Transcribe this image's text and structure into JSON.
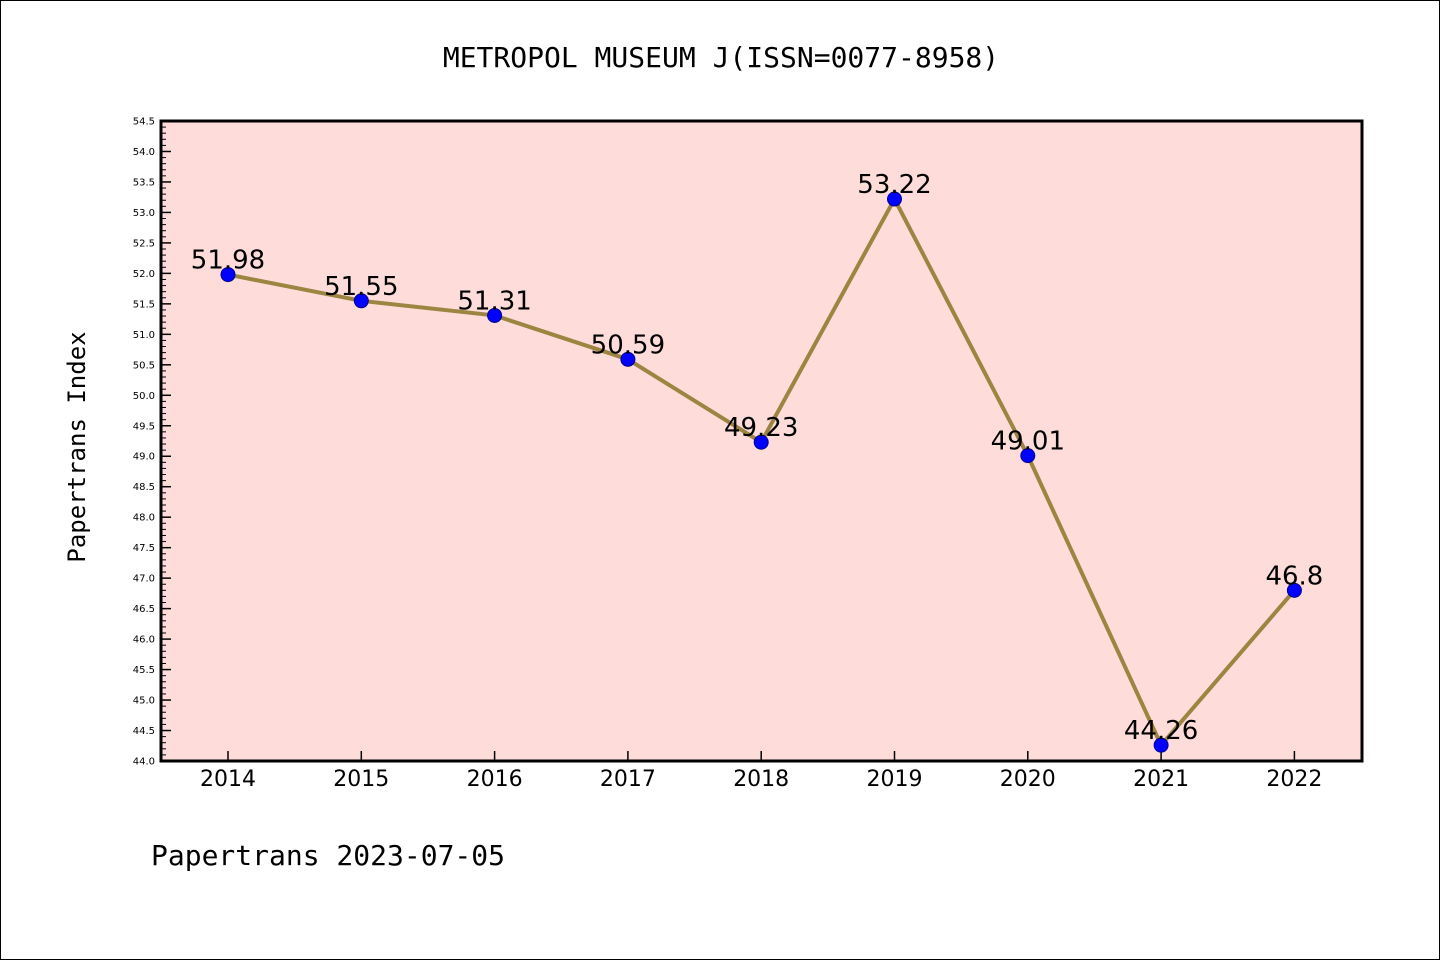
{
  "chart_data": {
    "type": "line",
    "title": "METROPOL MUSEUM J(ISSN=0077-8958)",
    "xlabel": "",
    "ylabel": "Papertrans Index",
    "categories": [
      "2014",
      "2015",
      "2016",
      "2017",
      "2018",
      "2019",
      "2020",
      "2021",
      "2022"
    ],
    "series": [
      {
        "values": [
          51.98,
          51.55,
          51.31,
          50.59,
          49.23,
          53.22,
          49.01,
          44.26,
          46.8
        ],
        "labels": [
          "51.98",
          "51.55",
          "51.31",
          "50.59",
          "49.23",
          "53.22",
          "49.01",
          "44.26",
          "46.8"
        ]
      }
    ],
    "ylim": [
      44.0,
      54.5
    ],
    "ytick_step": 0.5,
    "yticks": [
      "44.0",
      "44.5",
      "45.0",
      "45.5",
      "46.0",
      "46.5",
      "47.0",
      "47.5",
      "48.0",
      "48.5",
      "49.0",
      "49.5",
      "50.0",
      "50.5",
      "51.0",
      "51.5",
      "52.0",
      "52.5",
      "53.0",
      "53.5",
      "54.0",
      "54.5"
    ],
    "grid": false,
    "legend": "none",
    "footer": "Papertrans 2023-07-05",
    "colors": {
      "plot_background": "#fddcda",
      "line": "#9b8540",
      "marker_fill": "#0000ff",
      "marker_edge": "#00008b",
      "axis": "#000000",
      "text": "#000000"
    }
  }
}
